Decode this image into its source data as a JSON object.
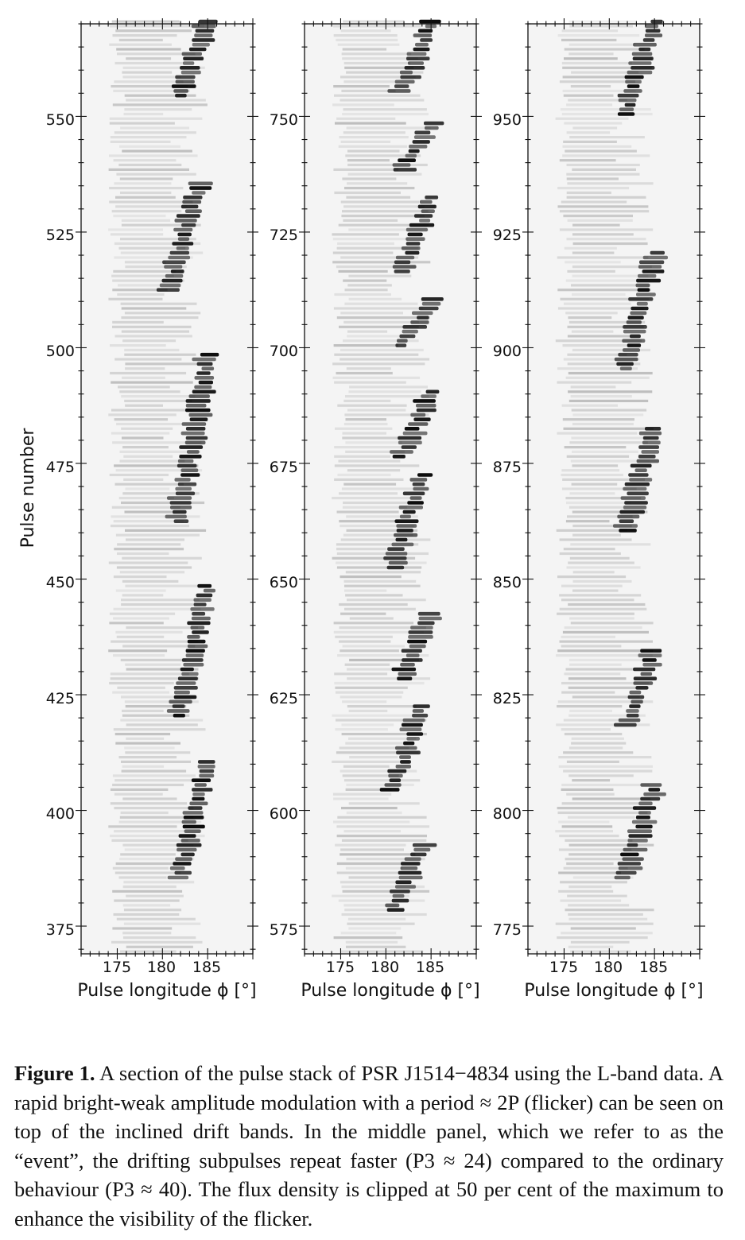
{
  "figure": {
    "ylabel": "Pulse number",
    "xlabel": "Pulse longitude ϕ [°]",
    "colormap": "grayscale (white = 0, black = max)",
    "panels": [
      {
        "x_ticks": [
          "175",
          "180",
          "185"
        ],
        "y_ticks": [
          "550",
          "525",
          "500",
          "475",
          "450",
          "425",
          "400",
          "375"
        ],
        "xlabel": "Pulse longitude ϕ [°]"
      },
      {
        "x_ticks": [
          "175",
          "180",
          "185"
        ],
        "y_ticks": [
          "750",
          "725",
          "700",
          "675",
          "650",
          "625",
          "600",
          "575"
        ],
        "xlabel": "Pulse longitude ϕ [°]"
      },
      {
        "x_ticks": [
          "175",
          "180",
          "185"
        ],
        "y_ticks": [
          "950",
          "925",
          "900",
          "875",
          "850",
          "825",
          "800",
          "775"
        ],
        "xlabel": "Pulse longitude ϕ [°]"
      }
    ]
  },
  "chart_data": [
    {
      "type": "heatmap",
      "x_range": [
        171,
        190
      ],
      "y_range": [
        369,
        570
      ],
      "xlabel": "Pulse longitude ϕ [°]",
      "ylabel": "Pulse number",
      "drift_band_bright_regions": [
        {
          "pulse_from": 385,
          "pulse_to": 410,
          "longitude": 184
        },
        {
          "pulse_from": 420,
          "pulse_to": 448,
          "longitude": 184
        },
        {
          "pulse_from": 462,
          "pulse_to": 498,
          "longitude": 184
        },
        {
          "pulse_from": 512,
          "pulse_to": 535,
          "longitude": 183
        },
        {
          "pulse_from": 554,
          "pulse_to": 570,
          "longitude": 184
        }
      ]
    },
    {
      "type": "heatmap",
      "x_range": [
        171,
        190
      ],
      "y_range": [
        569,
        770
      ],
      "xlabel": "Pulse longitude ϕ [°]",
      "drift_band_bright_regions": [
        {
          "pulse_from": 578,
          "pulse_to": 592,
          "longitude": 183
        },
        {
          "pulse_from": 604,
          "pulse_to": 622,
          "longitude": 183
        },
        {
          "pulse_from": 628,
          "pulse_to": 642,
          "longitude": 184
        },
        {
          "pulse_from": 652,
          "pulse_to": 672,
          "longitude": 183
        },
        {
          "pulse_from": 676,
          "pulse_to": 690,
          "longitude": 184
        },
        {
          "pulse_from": 700,
          "pulse_to": 710,
          "longitude": 184
        },
        {
          "pulse_from": 716,
          "pulse_to": 732,
          "longitude": 184
        },
        {
          "pulse_from": 738,
          "pulse_to": 748,
          "longitude": 184
        },
        {
          "pulse_from": 755,
          "pulse_to": 770,
          "longitude": 184
        }
      ]
    },
    {
      "type": "heatmap",
      "x_range": [
        171,
        190
      ],
      "y_range": [
        769,
        970
      ],
      "xlabel": "Pulse longitude ϕ [°]",
      "drift_band_bright_regions": [
        {
          "pulse_from": 785,
          "pulse_to": 805,
          "longitude": 184
        },
        {
          "pulse_from": 818,
          "pulse_to": 834,
          "longitude": 184
        },
        {
          "pulse_from": 860,
          "pulse_to": 882,
          "longitude": 184
        },
        {
          "pulse_from": 895,
          "pulse_to": 920,
          "longitude": 184
        },
        {
          "pulse_from": 950,
          "pulse_to": 970,
          "longitude": 184
        }
      ]
    }
  ],
  "caption": {
    "label": "Figure 1.",
    "line1": " A section of the pulse stack of PSR J1514−4834 using the L-band",
    "line2": "data. A rapid bright-weak amplitude modulation with a period ≈ 2P (flicker)",
    "line3": "can be seen on top of the inclined drift bands. In the middle panel, which",
    "line4": "we refer to as the “event”, the drifting subpulses repeat faster (P3 ≈ 24)",
    "line5": "compared to the ordinary behaviour (P3 ≈ 40). The flux density is clipped at",
    "line6": "50 per cent of the maximum to enhance the visibility of the flicker."
  }
}
